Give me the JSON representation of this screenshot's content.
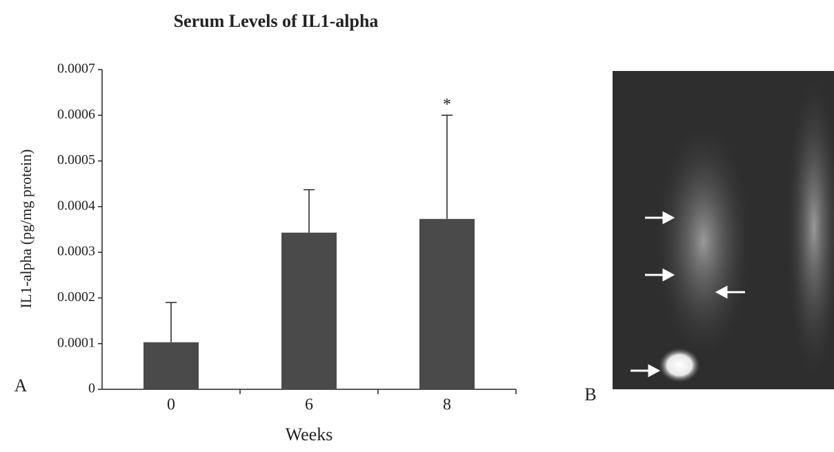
{
  "chart_data": {
    "type": "bar",
    "title": "Serum Levels of IL1-alpha",
    "x_label": "Weeks",
    "y_label": "IL1-alpha (pg/mg protein)",
    "categories": [
      "0",
      "6",
      "8"
    ],
    "values": [
      0.000103,
      0.000343,
      0.000373
    ],
    "errors": [
      8.7e-05,
      9.4e-05,
      0.000227
    ],
    "color": "#4a4a4a",
    "ylim": [
      0,
      0.0007
    ],
    "yticks": [
      0,
      0.0001,
      0.0002,
      0.0003,
      0.0004,
      0.0005,
      0.0006,
      0.0007
    ],
    "annotations": [
      {
        "text": "*",
        "category": 2
      }
    ]
  },
  "panels": {
    "a_label": "A",
    "b_label": "B"
  }
}
